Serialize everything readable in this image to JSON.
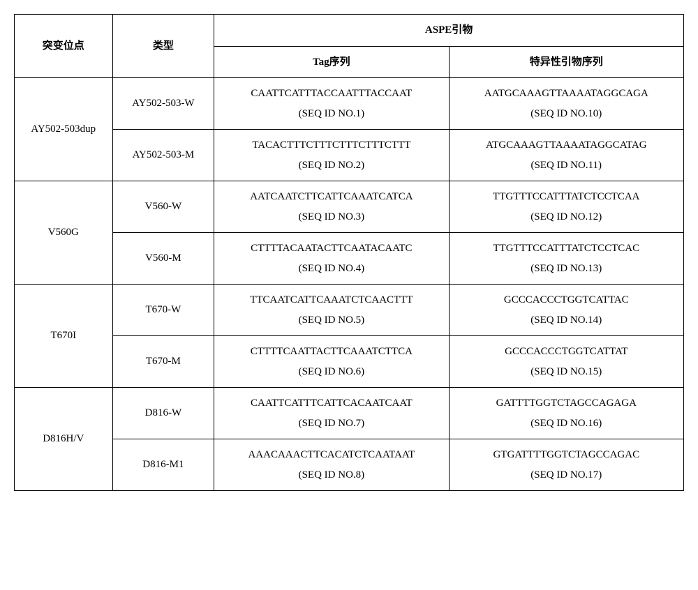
{
  "headers": {
    "mutation": "突变位点",
    "type": "类型",
    "aspe": "ASPE引物",
    "tag": "Tag序列",
    "specific": "特异性引物序列"
  },
  "rows": [
    {
      "mutation": "AY502-503dup",
      "variants": [
        {
          "type": "AY502-503-W",
          "tag_seq": "CAATTCATTTACCAATTTACCAAT",
          "tag_id": "(SEQ ID NO.1)",
          "spec_seq": "AATGCAAAGTTAAAATAGGCAGA",
          "spec_id": "(SEQ ID NO.10)"
        },
        {
          "type": "AY502-503-M",
          "tag_seq": "TACACTTTCTTTCTTTCTTTCTTT",
          "tag_id": "(SEQ ID NO.2)",
          "spec_seq": "ATGCAAAGTTAAAATAGGCATAG",
          "spec_id": "(SEQ ID NO.11)"
        }
      ]
    },
    {
      "mutation": "V560G",
      "variants": [
        {
          "type": "V560-W",
          "tag_seq": "AATCAATCTTCATTCAAATCATCA",
          "tag_id": "(SEQ ID NO.3)",
          "spec_seq": "TTGTTTCCATTTATCTCCTCAA",
          "spec_id": "(SEQ ID NO.12)"
        },
        {
          "type": "V560-M",
          "tag_seq": "CTTTTACAATACTTCAATACAATC",
          "tag_id": "(SEQ ID NO.4)",
          "spec_seq": "TTGTTTCCATTTATCTCCTCAC",
          "spec_id": "(SEQ ID NO.13)"
        }
      ]
    },
    {
      "mutation": "T670I",
      "variants": [
        {
          "type": "T670-W",
          "tag_seq": "TTCAATCATTCAAATCTCAACTTT",
          "tag_id": "(SEQ ID NO.5)",
          "spec_seq": "GCCCACCCTGGTCATTAC",
          "spec_id": "(SEQ ID NO.14)"
        },
        {
          "type": "T670-M",
          "tag_seq": "CTTTTCAATTACTTCAAATCTTCA",
          "tag_id": "(SEQ ID NO.6)",
          "spec_seq": "GCCCACCCTGGTCATTAT",
          "spec_id": "(SEQ ID NO.15)"
        }
      ]
    },
    {
      "mutation": "D816H/V",
      "variants": [
        {
          "type": "D816-W",
          "tag_seq": "CAATTCATTTCATTCACAATCAAT",
          "tag_id": "(SEQ ID NO.7)",
          "spec_seq": "GATTTTGGTCTAGCCAGAGA",
          "spec_id": "(SEQ ID NO.16)"
        },
        {
          "type": "D816-M1",
          "tag_seq": "AAACAAACTTCACATCTCAATAAT",
          "tag_id": "(SEQ ID NO.8)",
          "spec_seq": "GTGATTTTGGTCTAGCCAGAC",
          "spec_id": "(SEQ ID NO.17)"
        }
      ]
    }
  ]
}
